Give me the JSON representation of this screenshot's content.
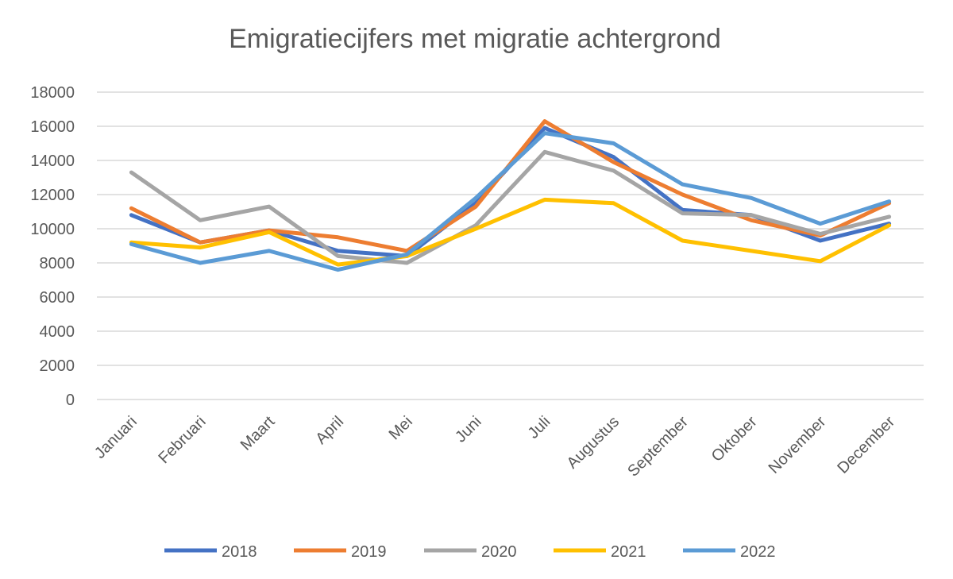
{
  "chart_data": {
    "type": "line",
    "title": "Emigratiecijfers met migratie achtergrond",
    "xlabel": "",
    "ylabel": "",
    "ylim": [
      0,
      18000
    ],
    "yticks": [
      0,
      2000,
      4000,
      6000,
      8000,
      10000,
      12000,
      14000,
      16000,
      18000
    ],
    "grid": true,
    "legend_position": "bottom",
    "categories": [
      "Januari",
      "Februari",
      "Maart",
      "April",
      "Mei",
      "Juni",
      "Juli",
      "Augustus",
      "September",
      "Oktober",
      "November",
      "December"
    ],
    "series": [
      {
        "name": "2018",
        "color": "#4472C4",
        "values": [
          10800,
          9200,
          9900,
          8700,
          8400,
          11500,
          15900,
          14200,
          11100,
          10800,
          9300,
          10300
        ]
      },
      {
        "name": "2019",
        "color": "#ED7D31",
        "values": [
          11200,
          9200,
          9900,
          9500,
          8700,
          11300,
          16300,
          13900,
          12000,
          10500,
          9600,
          11500
        ]
      },
      {
        "name": "2020",
        "color": "#A5A5A5",
        "values": [
          13300,
          10500,
          11300,
          8400,
          8000,
          10200,
          14500,
          13400,
          10900,
          10800,
          9700,
          10700
        ]
      },
      {
        "name": "2021",
        "color": "#FFC000",
        "values": [
          9200,
          8900,
          9800,
          7900,
          8400,
          10000,
          11700,
          11500,
          9300,
          8700,
          8100,
          10200
        ]
      },
      {
        "name": "2022",
        "color": "#5B9BD5",
        "values": [
          9100,
          8000,
          8700,
          7600,
          8500,
          11800,
          15600,
          15000,
          12600,
          11800,
          10300,
          11600
        ]
      }
    ]
  }
}
